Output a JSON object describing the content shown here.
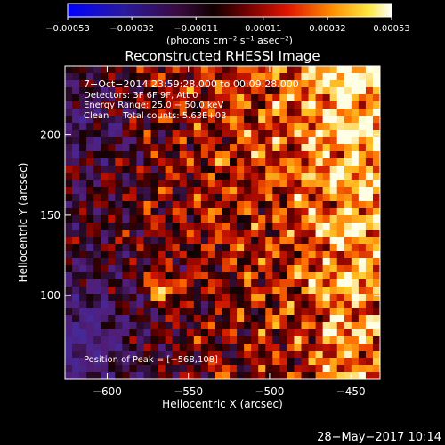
{
  "chart_data": {
    "type": "heatmap",
    "title": "Reconstructed RHESSI Image",
    "xlabel": "Heliocentric X (arcsec)",
    "ylabel": "Heliocentric Y (arcsec)",
    "xlim": [
      -626,
      -432
    ],
    "ylim": [
      48,
      243
    ],
    "x_ticks": [
      -600,
      -550,
      -500,
      -450
    ],
    "x_tick_labels": [
      "−600",
      "−550",
      "−500",
      "−450"
    ],
    "y_ticks": [
      100,
      150,
      200
    ],
    "y_tick_labels": [
      "100",
      "150",
      "200"
    ],
    "colorbar": {
      "range": [
        -0.00053,
        0.00053
      ],
      "ticks": [
        -0.00053,
        -0.00032,
        -0.00011,
        0.00011,
        0.00032,
        0.00053
      ],
      "tick_labels": [
        "−0.00053",
        "−0.00032",
        "−0.00011",
        "0.00011",
        "0.00032",
        "0.00053"
      ],
      "unit_label": "(photons cm⁻² s⁻¹ asec⁻²)"
    },
    "annotations": [
      "7−Oct−2014 23:59:28.000 to 00:09:28.000",
      "Detectors: 3F 6F 9F, Att 0",
      "Energy Range: 25.0 − 50.0 keV",
      "Clean     Total counts: 5.63E+03"
    ],
    "peak_label": "Position of Peak = [−568,108]",
    "peak": [
      -568,
      108
    ],
    "footer": "28−May−2017 10:14"
  }
}
